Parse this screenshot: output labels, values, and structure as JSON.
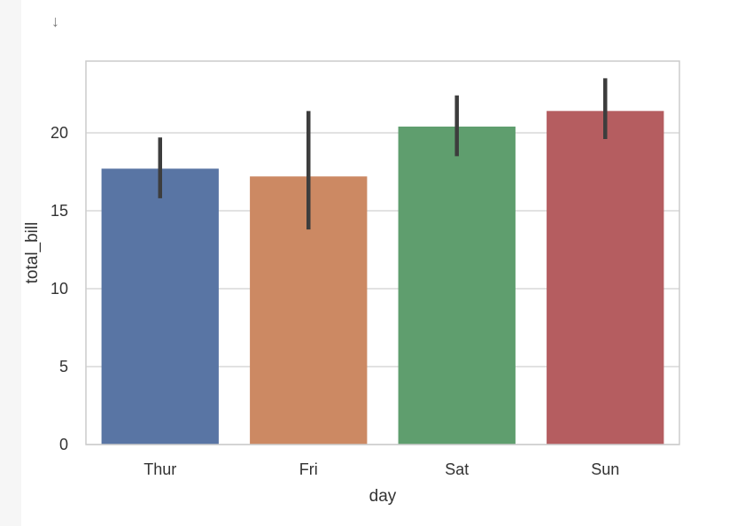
{
  "scroll_indicator": "↓",
  "colors": {
    "bars": [
      "#5975a4",
      "#cc8963",
      "#5f9e6e",
      "#b55d60"
    ],
    "error_bar": "#3d3d3d",
    "grid": "#d9d9d9",
    "frame": "#cccccc"
  },
  "chart_data": {
    "type": "bar",
    "categories": [
      "Thur",
      "Fri",
      "Sat",
      "Sun"
    ],
    "values": [
      17.7,
      17.2,
      20.4,
      21.4
    ],
    "error_low": [
      15.8,
      13.8,
      18.5,
      19.6
    ],
    "error_high": [
      19.7,
      21.4,
      22.4,
      23.5
    ],
    "xlabel": "day",
    "ylabel": "total_bill",
    "yticks": [
      0,
      5,
      10,
      15,
      20
    ],
    "ylim": [
      0,
      24.6
    ],
    "grid": true
  }
}
